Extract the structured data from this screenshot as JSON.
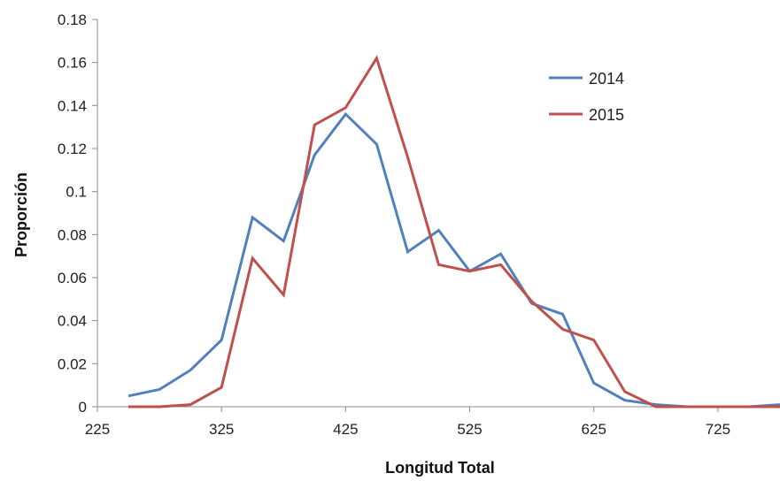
{
  "chart_data": {
    "type": "line",
    "title": "",
    "xlabel": "Longitud Total",
    "ylabel": "Proporción",
    "xlim": [
      225,
      775
    ],
    "ylim": [
      0,
      0.18
    ],
    "xticks": [
      225,
      325,
      425,
      525,
      625,
      725
    ],
    "xtick_labels": [
      "225",
      "325",
      "425",
      "525",
      "625",
      "725"
    ],
    "yticks": [
      0,
      0.02,
      0.04,
      0.06,
      0.08,
      0.1,
      0.12,
      0.14,
      0.16,
      0.18
    ],
    "ytick_labels": [
      "0",
      "0.02",
      "0.04",
      "0.06",
      "0.08",
      "0.1",
      "0.12",
      "0.14",
      "0.16",
      "0.18"
    ],
    "grid": false,
    "legend_position": "top-right",
    "x": [
      250,
      275,
      300,
      325,
      350,
      375,
      400,
      425,
      450,
      475,
      500,
      525,
      550,
      575,
      600,
      625,
      650,
      675,
      700,
      725,
      750,
      775
    ],
    "series": [
      {
        "name": "2014",
        "color": "#4f81bd",
        "values": [
          0.005,
          0.008,
          0.017,
          0.031,
          0.088,
          0.077,
          0.117,
          0.136,
          0.122,
          0.072,
          0.082,
          0.063,
          0.071,
          0.048,
          0.043,
          0.011,
          0.003,
          0.001,
          0.0,
          0.0,
          0.0,
          0.001
        ]
      },
      {
        "name": "2015",
        "color": "#c0504d",
        "values": [
          0.0,
          0.0,
          0.001,
          0.009,
          0.069,
          0.052,
          0.131,
          0.139,
          0.162,
          0.116,
          0.066,
          0.063,
          0.066,
          0.049,
          0.036,
          0.031,
          0.007,
          0.0,
          0.0,
          0.0,
          0.0,
          0.0
        ]
      }
    ]
  }
}
